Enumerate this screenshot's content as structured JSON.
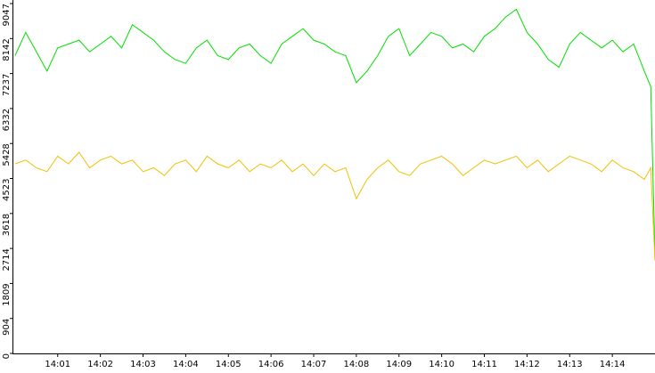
{
  "chart_data": {
    "type": "line",
    "x": [
      840,
      840.25,
      840.5,
      840.75,
      841,
      841.25,
      841.5,
      841.75,
      842,
      842.25,
      842.5,
      842.75,
      843,
      843.25,
      843.5,
      843.75,
      844,
      844.25,
      844.5,
      844.75,
      845,
      845.25,
      845.5,
      845.75,
      846,
      846.25,
      846.5,
      846.75,
      847,
      847.25,
      847.5,
      847.75,
      848,
      848.25,
      848.5,
      848.75,
      849,
      849.25,
      849.5,
      849.75,
      850,
      850.25,
      850.5,
      850.75,
      851,
      851.25,
      851.5,
      851.75,
      852,
      852.25,
      852.5,
      852.75,
      853,
      853.25,
      853.5,
      853.75,
      854,
      854.25,
      854.5,
      854.75,
      854.9,
      855
    ],
    "series": [
      {
        "color": "#00e000",
        "values": [
          7700,
          8300,
          7800,
          7300,
          7900,
          8000,
          8100,
          7800,
          8000,
          8200,
          7900,
          8500,
          8300,
          8100,
          7800,
          7600,
          7500,
          7900,
          8100,
          7700,
          7600,
          7900,
          8000,
          7700,
          7500,
          8000,
          8200,
          8400,
          8100,
          8000,
          7800,
          7700,
          7000,
          7300,
          7700,
          8200,
          8400,
          7700,
          8000,
          8300,
          8200,
          7900,
          8000,
          7800,
          8200,
          8400,
          8700,
          8900,
          8300,
          8000,
          7600,
          7400,
          8000,
          8300,
          8100,
          7900,
          8100,
          7800,
          8000,
          7300,
          6900,
          2500
        ]
      },
      {
        "color": "#f0c000",
        "values": [
          4900,
          5000,
          4800,
          4700,
          5100,
          4900,
          5200,
          4800,
          5000,
          5100,
          4900,
          5000,
          4700,
          4800,
          4600,
          4900,
          5000,
          4700,
          5100,
          4900,
          4800,
          5000,
          4700,
          4900,
          4800,
          5000,
          4700,
          4900,
          4600,
          4900,
          4700,
          4800,
          4000,
          4500,
          4800,
          5000,
          4700,
          4600,
          4900,
          5000,
          5100,
          4900,
          4600,
          4800,
          5000,
          4900,
          5000,
          5100,
          4800,
          5000,
          4700,
          4900,
          5100,
          5000,
          4900,
          4700,
          5000,
          4800,
          4700,
          4500,
          4800,
          2400
        ]
      }
    ],
    "xlim": [
      839.94,
      855
    ],
    "xticks": [
      {
        "value": 841,
        "label": "14:01"
      },
      {
        "value": 842,
        "label": "14:02"
      },
      {
        "value": 843,
        "label": "14:03"
      },
      {
        "value": 844,
        "label": "14:04"
      },
      {
        "value": 845,
        "label": "14:05"
      },
      {
        "value": 846,
        "label": "14:06"
      },
      {
        "value": 847,
        "label": "14:07"
      },
      {
        "value": 848,
        "label": "14:08"
      },
      {
        "value": 849,
        "label": "14:09"
      },
      {
        "value": 850,
        "label": "14:10"
      },
      {
        "value": 851,
        "label": "14:11"
      },
      {
        "value": 852,
        "label": "14:12"
      },
      {
        "value": 853,
        "label": "14:13"
      },
      {
        "value": 854,
        "label": "14:14"
      }
    ],
    "ylim": [
      0,
      9047
    ],
    "yticks": [
      0,
      904,
      1809,
      2714,
      3618,
      4523,
      5428,
      6332,
      7237,
      8142,
      9047
    ]
  }
}
